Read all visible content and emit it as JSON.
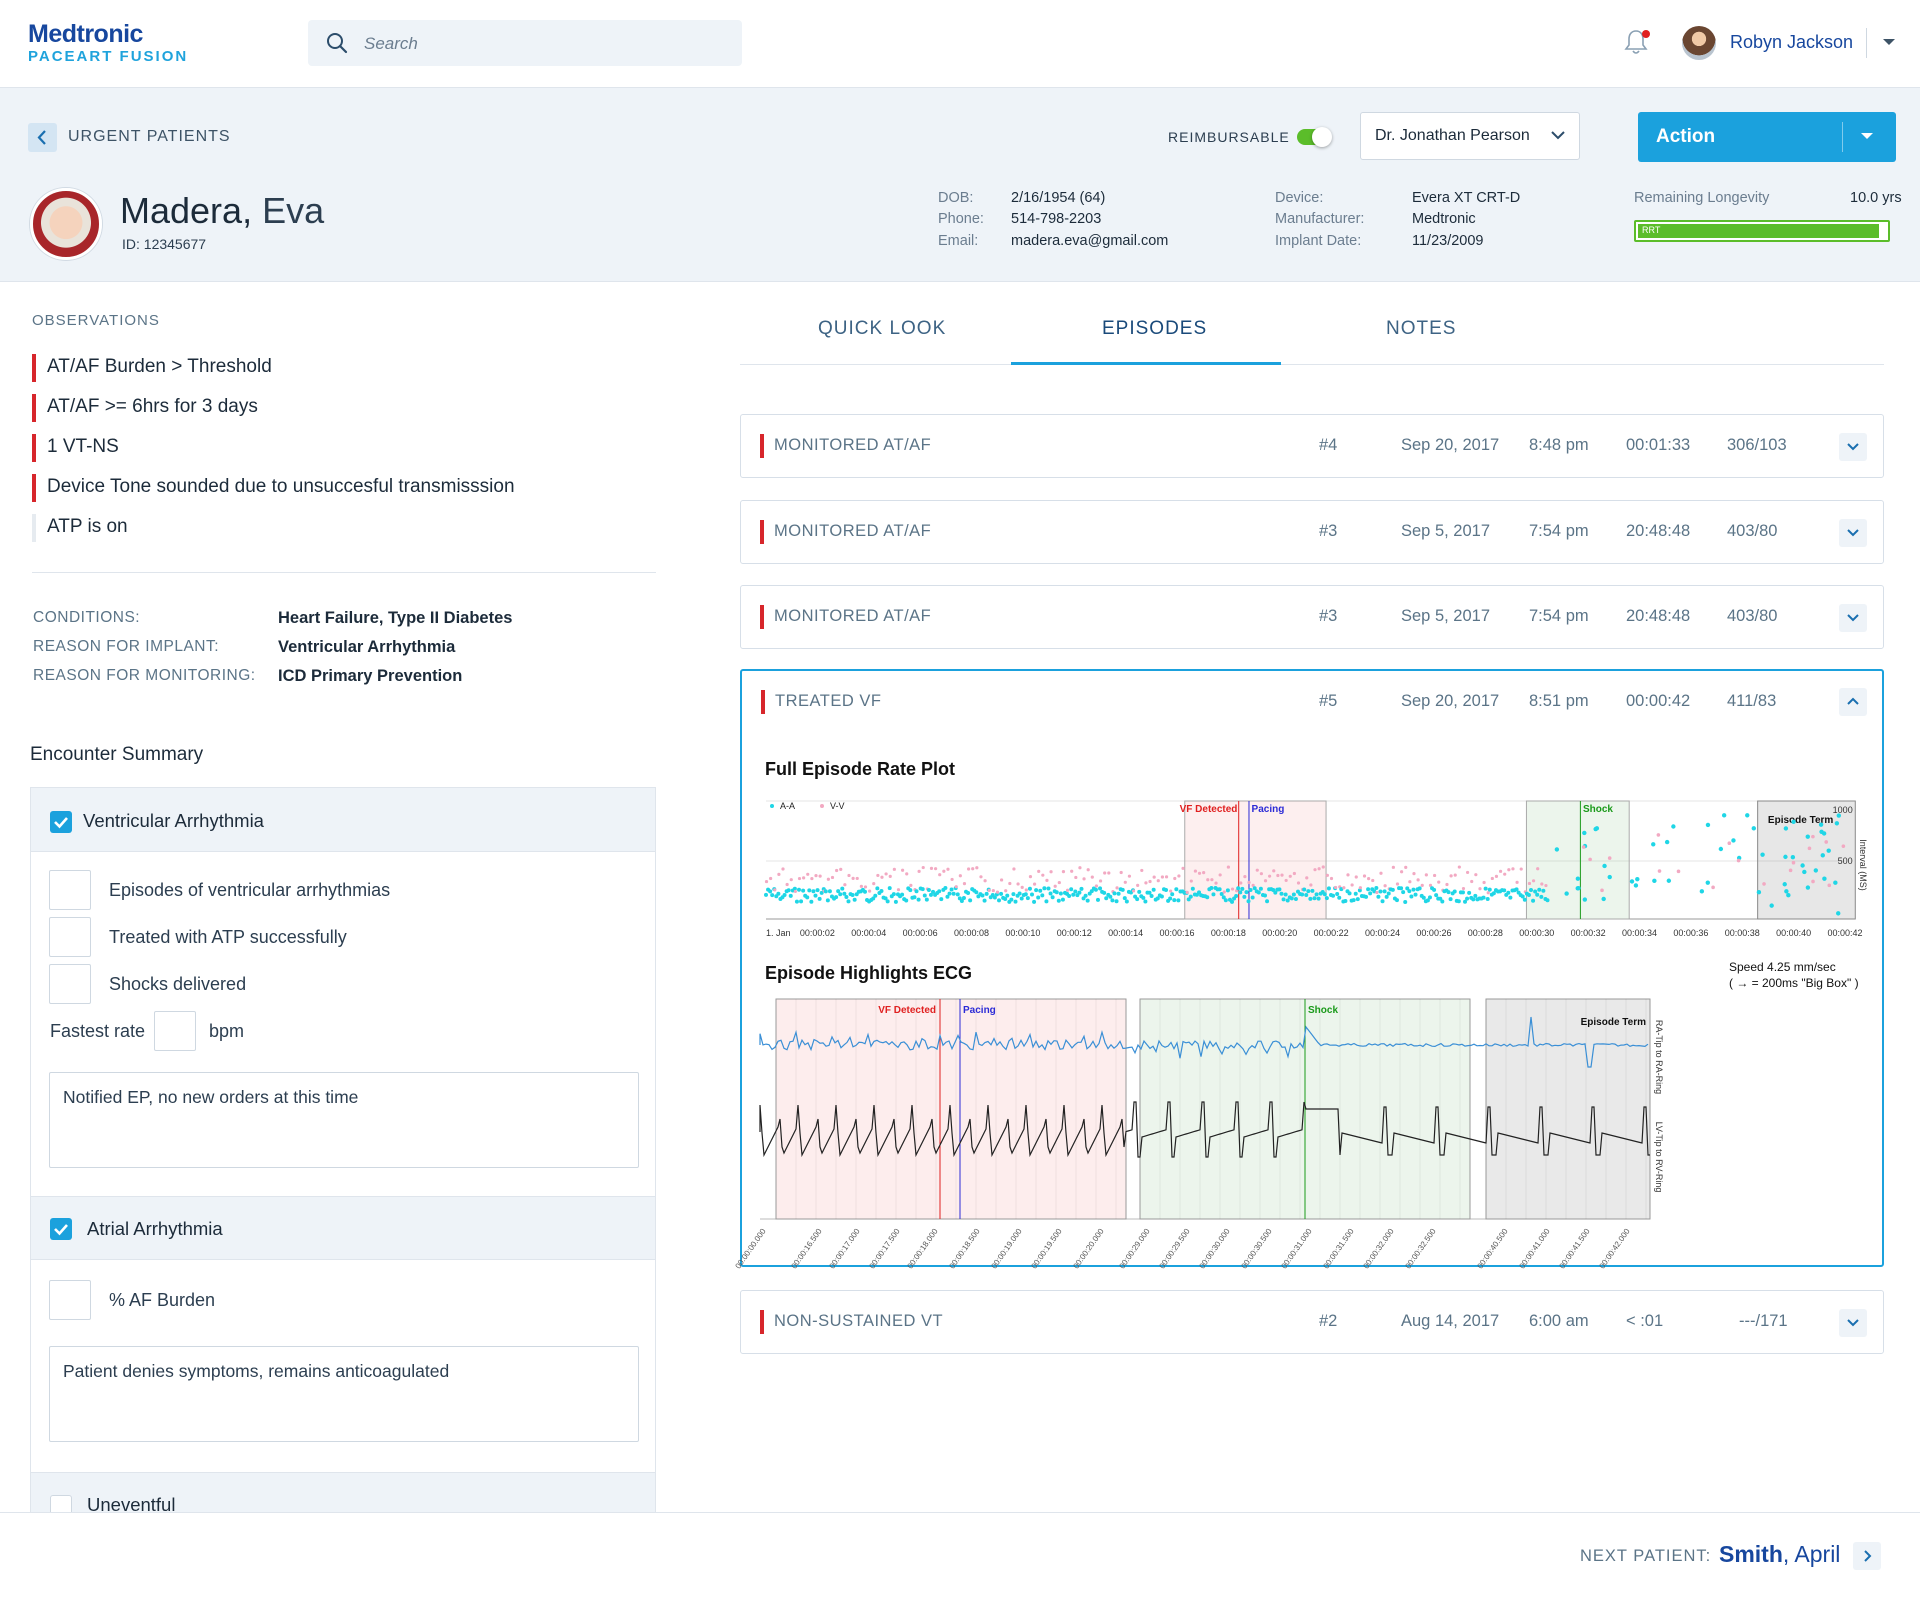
{
  "app": {
    "brand": "Medtronic",
    "product": "PACEART FUSION"
  },
  "search": {
    "placeholder": "Search"
  },
  "user": {
    "name": "Robyn Jackson"
  },
  "header": {
    "back_label": "URGENT PATIENTS",
    "reimbursable_label": "REIMBURSABLE",
    "reimbursable_on": true,
    "doctor": "Dr. Jonathan Pearson",
    "action_label": "Action"
  },
  "patient": {
    "last": "Madera",
    "first": "Eva",
    "id": "ID: 12345677",
    "dob_label": "DOB:",
    "dob": "2/16/1954 (64)",
    "phone_label": "Phone:",
    "phone": "514-798-2203",
    "email_label": "Email:",
    "email": "madera.eva@gmail.com",
    "device_label": "Device:",
    "device": "Evera XT CRT-D",
    "manufacturer_label": "Manufacturer:",
    "manufacturer": "Medtronic",
    "implant_label": "Implant Date:",
    "implant": "11/23/2009",
    "longevity_label": "Remaining Longevity",
    "longevity": "10.0 yrs",
    "longevity_fraction": 0.97,
    "longevity_tag": "RRT"
  },
  "observations": {
    "title": "OBSERVATIONS",
    "items": [
      {
        "text": "AT/AF Burden > Threshold",
        "alert": true
      },
      {
        "text": "AT/AF >= 6hrs for 3 days",
        "alert": true
      },
      {
        "text": "1 VT-NS",
        "alert": true
      },
      {
        "text": "Device Tone sounded due to unsuccesful transmisssion",
        "alert": true
      },
      {
        "text": "ATP is on",
        "alert": false
      }
    ]
  },
  "conditions": {
    "conditions_label": "CONDITIONS:",
    "conditions": "Heart Failure, Type II Diabetes",
    "implant_reason_label": "REASON FOR IMPLANT:",
    "implant_reason": "Ventricular Arrhythmia",
    "monitoring_reason_label": "REASON FOR MONITORING:",
    "monitoring_reason": "ICD Primary Prevention"
  },
  "encounter": {
    "title": "Encounter Summary",
    "ventricular": {
      "label": "Ventricular Arrhythmia",
      "checked": true,
      "items": [
        "Episodes of ventricular arrhythmias",
        "Treated with ATP successfully",
        "Shocks delivered"
      ],
      "fastest_label": "Fastest rate",
      "fastest_unit": "bpm",
      "note": "Notified EP, no new orders at this time"
    },
    "atrial": {
      "label": "Atrial Arrhythmia",
      "checked": true,
      "item": "% AF Burden",
      "note": "Patient denies symptoms, remains anticoagulated"
    },
    "uneventful": {
      "label": "Uneventful",
      "checked": false
    }
  },
  "tabs": [
    {
      "label": "QUICK LOOK",
      "active": false
    },
    {
      "label": "EPISODES",
      "active": true
    },
    {
      "label": "NOTES",
      "active": false
    }
  ],
  "episodes": [
    {
      "type": "MONITORED AT/AF",
      "num": "#4",
      "date": "Sep 20, 2017",
      "time": "8:48 pm",
      "duration": "00:01:33",
      "rate": "306/103"
    },
    {
      "type": "MONITORED AT/AF",
      "num": "#3",
      "date": "Sep 5, 2017",
      "time": "7:54 pm",
      "duration": "20:48:48",
      "rate": "403/80"
    },
    {
      "type": "MONITORED AT/AF",
      "num": "#3",
      "date": "Sep 5, 2017",
      "time": "7:54 pm",
      "duration": "20:48:48",
      "rate": "403/80"
    },
    {
      "type": "TREATED VF",
      "num": "#5",
      "date": "Sep 20, 2017",
      "time": "8:51 pm",
      "duration": "00:00:42",
      "rate": "411/83"
    },
    {
      "type": "NON-SUSTAINED VT",
      "num": "#2",
      "date": "Aug 14, 2017",
      "time": "6:00 am",
      "duration": "< :01",
      "rate": "---/171"
    }
  ],
  "rate_plot": {
    "title": "Full Episode Rate Plot",
    "legend_aa": "A-A",
    "legend_vv": "V-V",
    "y_axis_label": "Interval (MS)",
    "y_ticks": [
      "1000",
      "500"
    ],
    "x_ticks": [
      "1. Jan",
      "00:00:02",
      "00:00:04",
      "00:00:06",
      "00:00:08",
      "00:00:10",
      "00:00:12",
      "00:00:14",
      "00:00:16",
      "00:00:18",
      "00:00:20",
      "00:00:22",
      "00:00:24",
      "00:00:26",
      "00:00:28",
      "00:00:30",
      "00:00:32",
      "00:00:34",
      "00:00:36",
      "00:00:38",
      "00:00:40",
      "00:00:42"
    ],
    "marker_vf": "VF Detected",
    "marker_pacing": "Pacing",
    "marker_shock": "Shock",
    "marker_term": "Episode Term",
    "colors": {
      "aa": "#1fd6e6",
      "vv": "#f2a9c2",
      "vf": "#e02020",
      "pacing": "#2b2bd6",
      "shock": "#1a9a1a"
    }
  },
  "ecg": {
    "title": "Episode Highlights ECG",
    "speed": "Speed 4.25 mm/sec",
    "scale": "( → = 200ms \"Big Box\" )",
    "channel_top": "RA-Tip to RA-Ring",
    "channel_bottom": "LV-Tip to RV-Ring",
    "marker_vf": "VF Detected",
    "marker_pacing": "Pacing",
    "marker_shock": "Shock",
    "marker_term": "Episode Term",
    "time_labels": [
      "00:00:00.000",
      "00:00:16.500",
      "00:00:17.000",
      "00:00:17.500",
      "00:00:18.000",
      "00:00:18.500",
      "00:00:19.000",
      "00:00:19.500",
      "00:00:20.000",
      "00:00:29.000",
      "00:00:29.500",
      "00:00:30.000",
      "00:00:30.500",
      "00:00:31.000",
      "00:00:31.500",
      "00:00:32.000",
      "00:00:32.500",
      "00:00:40.500",
      "00:00:41.000",
      "00:00:41.500",
      "00:00:42.000"
    ]
  },
  "next_patient": {
    "label": "NEXT PATIENT:",
    "last": "Smith",
    "first": "April"
  }
}
